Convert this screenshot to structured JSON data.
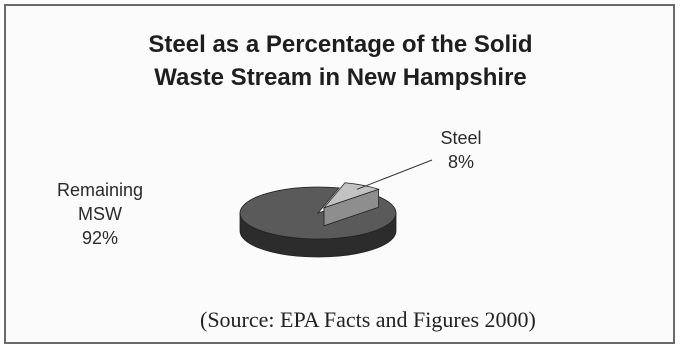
{
  "chart_data": {
    "type": "pie",
    "title_line1": "Steel as a Percentage of the Solid",
    "title_line2": "Waste Stream in New Hampshire",
    "slices": [
      {
        "label": "Steel",
        "value": 8,
        "value_label": "8%"
      },
      {
        "label_line1": "Remaining",
        "label_line2": "MSW",
        "value": 92,
        "value_label": "92%"
      }
    ],
    "source": "(Source: EPA Facts and Figures 2000)"
  },
  "colors": {
    "steel_top": "#c2c2c2",
    "steel_side": "#8e8e8e",
    "remaining_top": "#5a5a5a",
    "remaining_side": "#2c2c2c"
  }
}
